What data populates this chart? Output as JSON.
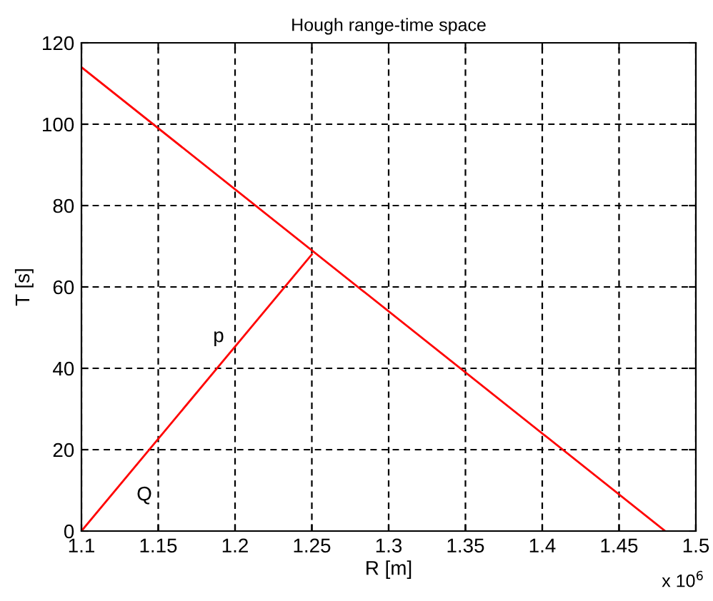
{
  "chart_data": {
    "type": "line",
    "title": "Hough range-time space",
    "xlabel": "R [m]",
    "ylabel": "T [s]",
    "series": [
      {
        "color": "#ff0000",
        "x": [
          1.1,
          1.48
        ],
        "values": [
          114,
          0
        ]
      },
      {
        "color": "#ff0000",
        "x": [
          1.1,
          1.25
        ],
        "values": [
          0,
          68
        ]
      }
    ],
    "xlim": [
      1.1,
      1.5
    ],
    "xticks": [
      1.1,
      1.15,
      1.2,
      1.25,
      1.3,
      1.35,
      1.4,
      1.45,
      1.5
    ],
    "ylim": [
      0,
      120
    ],
    "yticks": [
      0,
      20,
      40,
      60,
      80,
      100,
      120
    ],
    "grid": true,
    "line_style": "solid",
    "marker": "none",
    "annotations": [
      "p",
      "Q",
      "x 10$^{6}$"
    ]
  }
}
